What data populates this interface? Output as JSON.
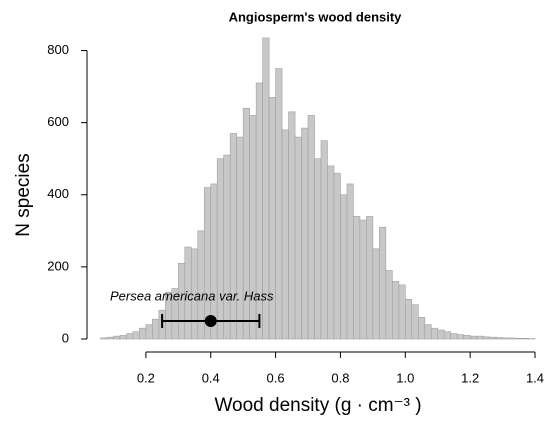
{
  "chart_data": {
    "type": "histogram",
    "title": "Angiosperm's wood density",
    "xlabel": "Wood density (g · cm⁻³ )",
    "ylabel": "N species",
    "bins": [
      0.06,
      0.08,
      0.1,
      0.12,
      0.14,
      0.16,
      0.18,
      0.2,
      0.22,
      0.24,
      0.26,
      0.28,
      0.3,
      0.32,
      0.34,
      0.36,
      0.38,
      0.4,
      0.42,
      0.44,
      0.46,
      0.48,
      0.5,
      0.52,
      0.54,
      0.56,
      0.58,
      0.6,
      0.62,
      0.64,
      0.66,
      0.68,
      0.7,
      0.72,
      0.74,
      0.76,
      0.78,
      0.8,
      0.82,
      0.84,
      0.86,
      0.88,
      0.9,
      0.92,
      0.94,
      0.96,
      0.98,
      1.0,
      1.02,
      1.04,
      1.06,
      1.08,
      1.1,
      1.12,
      1.14,
      1.16,
      1.18,
      1.2,
      1.22,
      1.24,
      1.26,
      1.28,
      1.3,
      1.32,
      1.34,
      1.36,
      1.38,
      1.4
    ],
    "counts": [
      3,
      5,
      8,
      10,
      15,
      20,
      30,
      40,
      55,
      80,
      130,
      140,
      210,
      255,
      250,
      300,
      420,
      430,
      500,
      510,
      570,
      560,
      640,
      620,
      710,
      835,
      670,
      750,
      580,
      630,
      560,
      585,
      620,
      500,
      550,
      480,
      460,
      400,
      430,
      340,
      330,
      340,
      250,
      310,
      190,
      160,
      150,
      110,
      95,
      60,
      40,
      30,
      25,
      20,
      15,
      12,
      10,
      8,
      8,
      6,
      5,
      4,
      3,
      3,
      2,
      2,
      1
    ],
    "color": "#c8c8c8",
    "xlim": [
      0.06,
      1.4
    ],
    "ylim": [
      0,
      850
    ],
    "xticks": [
      0.2,
      0.4,
      0.6,
      0.8,
      {
        "value": 1,
        "label": "1.0"
      },
      1.2,
      1.4
    ],
    "yticks": [
      0,
      200,
      400,
      600,
      800
    ],
    "annotation": {
      "label": "Persea americana var. Hass",
      "x": 0.4,
      "y": 50,
      "xerr": 0.15
    }
  }
}
